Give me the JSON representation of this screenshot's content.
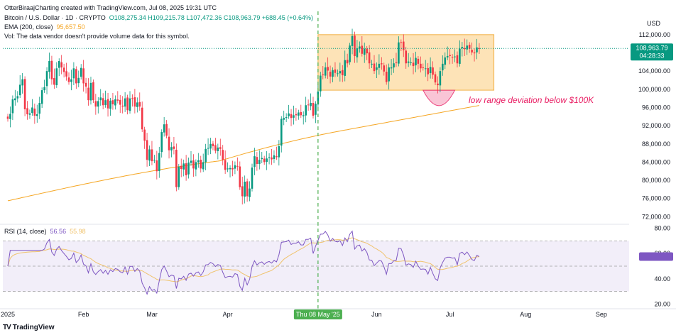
{
  "header": {
    "line1_prefix": "OtterBiraajCharting created with TradingView.com, Jul 08, 2025 19:31 UTC",
    "symbol": "Bitcoin / U.S. Dollar · 1D · CRYPTO",
    "ohlc": "O108,275.34  H109,215.78  L107,472.36  C108,963.79  +688.45 (+0.64%)",
    "ema_label": "EMA (200, close)",
    "ema_value": "95,657.50",
    "vol_note": "Vol: The data vendor doesn't provide volume data for this symbol.",
    "rsi_label": "RSI (14, close)",
    "rsi_value": "56.56",
    "rsi_ma_value": "55.98",
    "currency": "USD",
    "brand": "TradingView"
  },
  "colors": {
    "up": "#089981",
    "down": "#f23645",
    "ema": "#f5a623",
    "rsi": "#7e57c2",
    "rsi_ma": "#f0c36d",
    "range_fill": "#fde0b0",
    "range_stroke": "#f0a830",
    "annotation": "#e91e63",
    "vline": "#4caf50"
  },
  "chart_data": {
    "type": "candlestick",
    "price_axis": {
      "ticks": [
        "112,000.00",
        "108,000.00",
        "104,000.00",
        "100,000.00",
        "96,000.00",
        "92,000.00",
        "88,000.00",
        "84,000.00",
        "80,000.00",
        "76,000.00",
        "72,000.00"
      ],
      "range": [
        70500,
        114000
      ]
    },
    "last_price_label": "108,963.79",
    "countdown_label": "04:28:33",
    "rsi_axis": {
      "ticks": [
        "80.00",
        "60.00",
        "40.00",
        "20.00"
      ],
      "range": [
        18,
        82
      ],
      "band": [
        30,
        70
      ]
    },
    "x_ticks": [
      {
        "label": "2025",
        "day": 0
      },
      {
        "label": "Feb",
        "day": 31
      },
      {
        "label": "Mar",
        "day": 59
      },
      {
        "label": "Apr",
        "day": 90
      },
      {
        "label": "Jun",
        "day": 151
      },
      {
        "label": "Jul",
        "day": 181
      },
      {
        "label": "Aug",
        "day": 212
      },
      {
        "label": "Sep",
        "day": 243
      }
    ],
    "cursor_label": "Thu 08 May '25",
    "cursor_day": 127,
    "annotation": "low range deviation below $100K",
    "range_box": {
      "day_start": 127,
      "day_end": 199,
      "price_low": 99800,
      "price_high": 112000
    },
    "closes": [
      93500,
      94600,
      97800,
      98000,
      98500,
      101000,
      102200,
      95600,
      94500,
      94700,
      96000,
      94200,
      94500,
      97000,
      99800,
      100500,
      104000,
      106200,
      102200,
      101000,
      104600,
      106200,
      104800,
      103800,
      102800,
      101600,
      102200,
      104600,
      101300,
      102500,
      104700,
      101300,
      100600,
      97600,
      101400,
      97600,
      96200,
      97400,
      98200,
      96500,
      97600,
      95800,
      97500,
      96700,
      97800,
      97500,
      96600,
      96200,
      98000,
      95400,
      98000,
      98000,
      96200,
      97100,
      96200,
      91200,
      88700,
      84500,
      86800,
      84200,
      84500,
      82000,
      86000,
      90600,
      92300,
      89800,
      86600,
      87300,
      86900,
      78500,
      83000,
      82500,
      83700,
      81100,
      83900,
      84300,
      82600,
      84000,
      84400,
      82600,
      84000,
      86900,
      87100,
      88000,
      87500,
      86500,
      87200,
      86900,
      84500,
      82300,
      82600,
      82700,
      82400,
      83300,
      83000,
      78500,
      76500,
      79700,
      76500,
      78200,
      82800,
      85300,
      83600,
      84500,
      84900,
      84000,
      84800,
      85100,
      84600,
      85500,
      85100,
      87500,
      93500,
      93700,
      93900,
      94700,
      93700,
      94300,
      94300,
      94900,
      94300,
      94300,
      96500,
      96500,
      97000,
      94200,
      96800,
      99500,
      103000,
      103100,
      104800,
      104100,
      102800,
      104200,
      103600,
      103500,
      104000,
      103100,
      106400,
      105700,
      109600,
      111700,
      107300,
      109000,
      109400,
      107800,
      108900,
      107900,
      105700,
      105600,
      104000,
      104800,
      105600,
      105500,
      103900,
      101600,
      104800,
      104800,
      105700,
      105800,
      110300,
      110200,
      108600,
      105700,
      106100,
      105900,
      105100,
      106900,
      105600,
      104600,
      104700,
      104600,
      103300,
      104900,
      103200,
      101500,
      100900,
      104000,
      105600,
      107000,
      107300,
      107300,
      107100,
      107200,
      105700,
      108900,
      109300,
      108800,
      109600,
      108900,
      108100,
      107900,
      109200,
      108963
    ]
  }
}
